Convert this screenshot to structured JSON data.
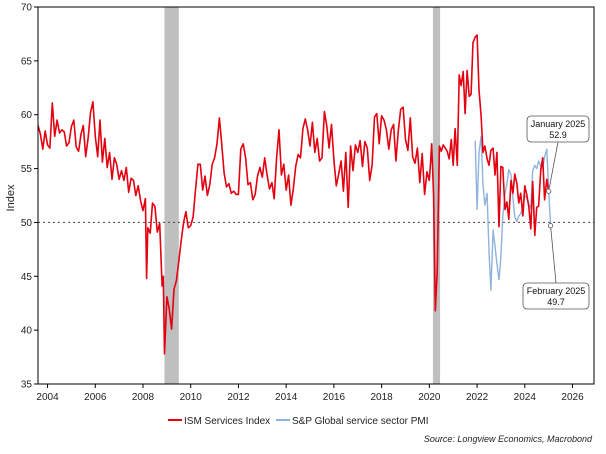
{
  "chart_data": {
    "type": "line",
    "title": "",
    "xlabel": "",
    "ylabel": "Index",
    "xlim": [
      2003.6,
      2026.9
    ],
    "ylim": [
      35,
      70
    ],
    "x_ticks": [
      2004,
      2006,
      2008,
      2010,
      2012,
      2014,
      2016,
      2018,
      2020,
      2022,
      2024,
      2026
    ],
    "x_tick_labels": [
      "2004",
      "2006",
      "2008",
      "2010",
      "2012",
      "2014",
      "2016",
      "2018",
      "2020",
      "2022",
      "2024",
      "2026"
    ],
    "y_ticks": [
      35,
      40,
      45,
      50,
      55,
      60,
      65,
      70
    ],
    "y_tick_labels": [
      "35",
      "40",
      "45",
      "50",
      "55",
      "60",
      "65",
      "70"
    ],
    "grid": false,
    "reference_line": {
      "y": 50,
      "style": "dotted"
    },
    "recession_bands": [
      {
        "start": 2008.9,
        "end": 2009.5
      },
      {
        "start": 2020.15,
        "end": 2020.45
      }
    ],
    "series": [
      {
        "name": "ISM Services Index",
        "color": "#e3000f",
        "points": [
          [
            2003.6,
            59.0
          ],
          [
            2003.7,
            58.2
          ],
          [
            2003.8,
            56.8
          ],
          [
            2003.9,
            58.5
          ],
          [
            2004.0,
            57.2
          ],
          [
            2004.1,
            56.9
          ],
          [
            2004.2,
            61.1
          ],
          [
            2004.3,
            58.0
          ],
          [
            2004.4,
            59.5
          ],
          [
            2004.5,
            58.3
          ],
          [
            2004.6,
            58.6
          ],
          [
            2004.7,
            58.4
          ],
          [
            2004.8,
            57.1
          ],
          [
            2004.9,
            57.4
          ],
          [
            2005.0,
            58.9
          ],
          [
            2005.1,
            59.5
          ],
          [
            2005.2,
            57.0
          ],
          [
            2005.3,
            56.6
          ],
          [
            2005.4,
            58.2
          ],
          [
            2005.5,
            59.0
          ],
          [
            2005.6,
            56.1
          ],
          [
            2005.7,
            57.8
          ],
          [
            2005.8,
            60.2
          ],
          [
            2005.9,
            61.2
          ],
          [
            2006.0,
            58.0
          ],
          [
            2006.1,
            56.1
          ],
          [
            2006.2,
            59.5
          ],
          [
            2006.3,
            55.6
          ],
          [
            2006.4,
            57.8
          ],
          [
            2006.5,
            55.1
          ],
          [
            2006.6,
            56.5
          ],
          [
            2006.7,
            54.0
          ],
          [
            2006.8,
            56.0
          ],
          [
            2006.9,
            55.4
          ],
          [
            2007.0,
            54.0
          ],
          [
            2007.1,
            54.8
          ],
          [
            2007.2,
            53.9
          ],
          [
            2007.3,
            55.1
          ],
          [
            2007.4,
            52.8
          ],
          [
            2007.5,
            54.1
          ],
          [
            2007.6,
            53.9
          ],
          [
            2007.7,
            52.5
          ],
          [
            2007.8,
            53.4
          ],
          [
            2007.9,
            52.0
          ],
          [
            2008.0,
            51.1
          ],
          [
            2008.1,
            52.2
          ],
          [
            2008.15,
            44.8
          ],
          [
            2008.2,
            49.5
          ],
          [
            2008.3,
            49.0
          ],
          [
            2008.4,
            51.8
          ],
          [
            2008.5,
            51.5
          ],
          [
            2008.6,
            49.1
          ],
          [
            2008.7,
            49.9
          ],
          [
            2008.8,
            44.1
          ],
          [
            2008.85,
            45.0
          ],
          [
            2008.9,
            37.8
          ],
          [
            2009.0,
            43.1
          ],
          [
            2009.1,
            42.0
          ],
          [
            2009.2,
            40.1
          ],
          [
            2009.3,
            43.8
          ],
          [
            2009.4,
            44.6
          ],
          [
            2009.5,
            46.4
          ],
          [
            2009.6,
            48.3
          ],
          [
            2009.7,
            50.0
          ],
          [
            2009.8,
            51.0
          ],
          [
            2009.9,
            49.5
          ],
          [
            2010.0,
            49.7
          ],
          [
            2010.1,
            50.5
          ],
          [
            2010.2,
            53.0
          ],
          [
            2010.3,
            55.4
          ],
          [
            2010.4,
            55.4
          ],
          [
            2010.5,
            53.0
          ],
          [
            2010.6,
            54.3
          ],
          [
            2010.7,
            52.5
          ],
          [
            2010.8,
            53.5
          ],
          [
            2010.9,
            55.4
          ],
          [
            2011.0,
            56.0
          ],
          [
            2011.1,
            57.3
          ],
          [
            2011.2,
            59.7
          ],
          [
            2011.3,
            57.3
          ],
          [
            2011.4,
            54.6
          ],
          [
            2011.5,
            53.3
          ],
          [
            2011.6,
            53.6
          ],
          [
            2011.7,
            52.7
          ],
          [
            2011.8,
            52.9
          ],
          [
            2011.9,
            52.6
          ],
          [
            2012.0,
            52.6
          ],
          [
            2012.1,
            56.8
          ],
          [
            2012.2,
            57.3
          ],
          [
            2012.3,
            56.0
          ],
          [
            2012.4,
            53.5
          ],
          [
            2012.5,
            53.7
          ],
          [
            2012.6,
            52.1
          ],
          [
            2012.7,
            52.6
          ],
          [
            2012.8,
            54.3
          ],
          [
            2012.9,
            55.1
          ],
          [
            2013.0,
            54.2
          ],
          [
            2013.1,
            56.0
          ],
          [
            2013.2,
            54.4
          ],
          [
            2013.3,
            53.1
          ],
          [
            2013.4,
            53.7
          ],
          [
            2013.5,
            52.2
          ],
          [
            2013.6,
            56.0
          ],
          [
            2013.7,
            58.6
          ],
          [
            2013.8,
            54.4
          ],
          [
            2013.9,
            55.4
          ],
          [
            2014.0,
            53.0
          ],
          [
            2014.1,
            54.4
          ],
          [
            2014.2,
            51.6
          ],
          [
            2014.3,
            53.1
          ],
          [
            2014.4,
            55.2
          ],
          [
            2014.5,
            56.3
          ],
          [
            2014.6,
            56.0
          ],
          [
            2014.7,
            58.7
          ],
          [
            2014.8,
            59.6
          ],
          [
            2014.9,
            58.6
          ],
          [
            2015.0,
            57.1
          ],
          [
            2015.1,
            59.3
          ],
          [
            2015.2,
            56.5
          ],
          [
            2015.3,
            57.8
          ],
          [
            2015.4,
            55.7
          ],
          [
            2015.5,
            56.0
          ],
          [
            2015.6,
            60.3
          ],
          [
            2015.7,
            59.0
          ],
          [
            2015.8,
            56.9
          ],
          [
            2015.9,
            59.1
          ],
          [
            2016.0,
            55.8
          ],
          [
            2016.1,
            53.4
          ],
          [
            2016.2,
            54.5
          ],
          [
            2016.3,
            55.7
          ],
          [
            2016.4,
            52.9
          ],
          [
            2016.5,
            56.5
          ],
          [
            2016.6,
            51.4
          ],
          [
            2016.7,
            57.1
          ],
          [
            2016.8,
            54.8
          ],
          [
            2016.9,
            57.2
          ],
          [
            2017.0,
            56.5
          ],
          [
            2017.1,
            57.6
          ],
          [
            2017.2,
            55.2
          ],
          [
            2017.3,
            57.5
          ],
          [
            2017.4,
            56.9
          ],
          [
            2017.5,
            53.9
          ],
          [
            2017.6,
            55.3
          ],
          [
            2017.7,
            59.8
          ],
          [
            2017.8,
            60.1
          ],
          [
            2017.9,
            57.3
          ],
          [
            2018.0,
            59.9
          ],
          [
            2018.1,
            59.5
          ],
          [
            2018.2,
            58.6
          ],
          [
            2018.3,
            56.8
          ],
          [
            2018.4,
            58.6
          ],
          [
            2018.5,
            59.1
          ],
          [
            2018.6,
            55.7
          ],
          [
            2018.7,
            58.5
          ],
          [
            2018.8,
            60.5
          ],
          [
            2018.9,
            60.7
          ],
          [
            2019.0,
            57.7
          ],
          [
            2019.1,
            56.7
          ],
          [
            2019.2,
            59.7
          ],
          [
            2019.3,
            56.1
          ],
          [
            2019.4,
            55.5
          ],
          [
            2019.5,
            56.9
          ],
          [
            2019.6,
            53.7
          ],
          [
            2019.7,
            56.4
          ],
          [
            2019.8,
            52.6
          ],
          [
            2019.9,
            54.7
          ],
          [
            2020.0,
            53.9
          ],
          [
            2020.05,
            55.5
          ],
          [
            2020.1,
            57.3
          ],
          [
            2020.18,
            52.5
          ],
          [
            2020.25,
            41.8
          ],
          [
            2020.33,
            45.4
          ],
          [
            2020.42,
            57.1
          ],
          [
            2020.5,
            56.6
          ],
          [
            2020.58,
            57.2
          ],
          [
            2020.67,
            56.9
          ],
          [
            2020.75,
            56.6
          ],
          [
            2020.83,
            55.9
          ],
          [
            2020.92,
            57.7
          ],
          [
            2021.0,
            55.3
          ],
          [
            2021.08,
            58.7
          ],
          [
            2021.17,
            55.3
          ],
          [
            2021.25,
            63.7
          ],
          [
            2021.33,
            62.7
          ],
          [
            2021.42,
            64.0
          ],
          [
            2021.5,
            60.1
          ],
          [
            2021.58,
            64.1
          ],
          [
            2021.67,
            61.7
          ],
          [
            2021.75,
            61.9
          ],
          [
            2021.83,
            66.7
          ],
          [
            2021.92,
            67.2
          ],
          [
            2022.0,
            67.4
          ],
          [
            2022.08,
            62.3
          ],
          [
            2022.17,
            59.9
          ],
          [
            2022.25,
            56.5
          ],
          [
            2022.33,
            57.1
          ],
          [
            2022.42,
            55.9
          ],
          [
            2022.5,
            55.3
          ],
          [
            2022.58,
            56.7
          ],
          [
            2022.67,
            56.9
          ],
          [
            2022.75,
            54.4
          ],
          [
            2022.83,
            56.5
          ],
          [
            2022.92,
            49.6
          ],
          [
            2023.0,
            55.2
          ],
          [
            2023.08,
            55.1
          ],
          [
            2023.17,
            51.2
          ],
          [
            2023.25,
            51.9
          ],
          [
            2023.33,
            50.3
          ],
          [
            2023.42,
            53.9
          ],
          [
            2023.5,
            52.7
          ],
          [
            2023.58,
            54.5
          ],
          [
            2023.67,
            53.6
          ],
          [
            2023.75,
            51.8
          ],
          [
            2023.83,
            52.7
          ],
          [
            2023.92,
            50.6
          ],
          [
            2024.0,
            53.4
          ],
          [
            2024.08,
            52.6
          ],
          [
            2024.17,
            51.4
          ],
          [
            2024.25,
            49.4
          ],
          [
            2024.33,
            53.8
          ],
          [
            2024.42,
            48.8
          ],
          [
            2024.5,
            51.4
          ],
          [
            2024.58,
            51.5
          ],
          [
            2024.67,
            54.9
          ],
          [
            2024.75,
            56.0
          ],
          [
            2024.83,
            52.1
          ],
          [
            2024.92,
            54.0
          ],
          [
            2025.0,
            52.8
          ]
        ]
      },
      {
        "name": "S&P Global service sector PMI",
        "color": "#8fb3dc",
        "points": [
          [
            2021.92,
            57.6
          ],
          [
            2022.0,
            51.2
          ],
          [
            2022.08,
            56.5
          ],
          [
            2022.17,
            58.0
          ],
          [
            2022.25,
            53.5
          ],
          [
            2022.33,
            51.6
          ],
          [
            2022.42,
            52.7
          ],
          [
            2022.5,
            47.3
          ],
          [
            2022.58,
            43.7
          ],
          [
            2022.67,
            49.3
          ],
          [
            2022.75,
            47.8
          ],
          [
            2022.83,
            46.2
          ],
          [
            2022.92,
            44.7
          ],
          [
            2023.0,
            46.8
          ],
          [
            2023.08,
            50.6
          ],
          [
            2023.17,
            52.6
          ],
          [
            2023.25,
            53.6
          ],
          [
            2023.33,
            54.9
          ],
          [
            2023.42,
            54.4
          ],
          [
            2023.5,
            52.3
          ],
          [
            2023.58,
            50.5
          ],
          [
            2023.67,
            50.1
          ],
          [
            2023.75,
            50.6
          ],
          [
            2023.83,
            50.8
          ],
          [
            2023.92,
            51.4
          ],
          [
            2024.0,
            52.5
          ],
          [
            2024.08,
            52.3
          ],
          [
            2024.17,
            51.7
          ],
          [
            2024.25,
            51.3
          ],
          [
            2024.33,
            54.8
          ],
          [
            2024.42,
            55.3
          ],
          [
            2024.5,
            55.0
          ],
          [
            2024.58,
            55.7
          ],
          [
            2024.67,
            55.2
          ],
          [
            2024.75,
            55.0
          ],
          [
            2024.83,
            56.1
          ],
          [
            2024.92,
            56.8
          ],
          [
            2025.0,
            52.9
          ],
          [
            2025.08,
            49.7
          ]
        ]
      }
    ],
    "annotations": [
      {
        "label": "January 2025",
        "value": "52.9",
        "x": 2025.0,
        "y": 52.9
      },
      {
        "label": "February 2025",
        "value": "49.7",
        "x": 2025.08,
        "y": 49.7
      }
    ],
    "legend_location": "bottom-center",
    "source": "Source: Longview Economics, Macrobond"
  }
}
